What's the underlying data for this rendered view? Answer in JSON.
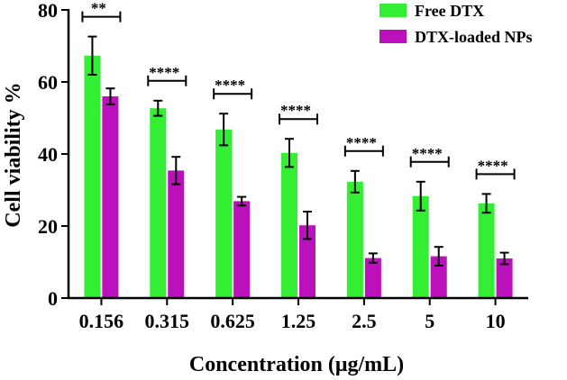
{
  "chart_data": {
    "type": "bar",
    "title": "",
    "xlabel": "Concentration (μg/mL)",
    "ylabel": "Cell viability %",
    "ylim": [
      0,
      80
    ],
    "yticks": [
      0,
      20,
      40,
      60,
      80
    ],
    "categories": [
      "0.156",
      "0.315",
      "0.625",
      "1.25",
      "2.5",
      "5",
      "10"
    ],
    "series": [
      {
        "name": "Free DTX",
        "color": "#33ee33",
        "values": [
          67.3,
          52.7,
          46.8,
          40.3,
          32.3,
          28.3,
          26.3
        ],
        "errors": [
          5.3,
          2.1,
          4.4,
          3.9,
          3.0,
          4.0,
          2.6
        ]
      },
      {
        "name": "DTX-loaded NPs",
        "color": "#bb11bb",
        "values": [
          56.0,
          35.4,
          26.9,
          20.2,
          11.1,
          11.6,
          11.0
        ],
        "errors": [
          2.2,
          3.8,
          1.2,
          3.8,
          1.3,
          2.6,
          1.6
        ]
      }
    ],
    "significance": [
      "**",
      "****",
      "****",
      "****",
      "****",
      "****",
      "****"
    ],
    "legend_position": "top-right"
  }
}
